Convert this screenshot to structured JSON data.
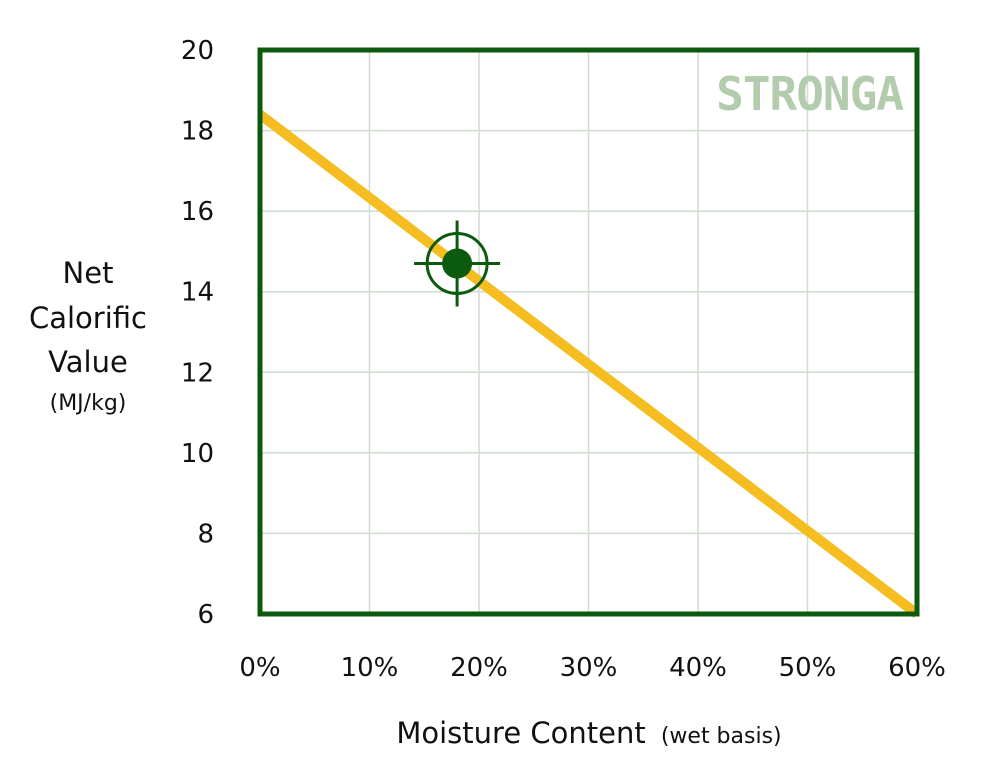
{
  "chart_data": {
    "type": "line",
    "title": "",
    "ylabel": {
      "lines": [
        "Net",
        "Calorific",
        "Value"
      ],
      "unit": "(MJ/kg)"
    },
    "xlabel": {
      "main": "Moisture Content",
      "qualifier": "(wet basis)"
    },
    "xlim": [
      0,
      60
    ],
    "ylim": [
      6,
      20
    ],
    "x_ticks": [
      0,
      10,
      20,
      30,
      40,
      50,
      60
    ],
    "x_tick_labels": [
      "0%",
      "10%",
      "20%",
      "30%",
      "40%",
      "50%",
      "60%"
    ],
    "y_ticks": [
      6,
      8,
      10,
      12,
      14,
      16,
      18,
      20
    ],
    "y_tick_labels": [
      "6",
      "8",
      "10",
      "12",
      "14",
      "16",
      "18",
      "20"
    ],
    "grid": true,
    "series": [
      {
        "x": [
          0,
          60
        ],
        "y": [
          18.4,
          6.0
        ]
      }
    ],
    "highlight_point": {
      "x": 18,
      "y": 14.7
    },
    "brand_text": "STRONGA",
    "colors": {
      "frame": "#0b5a0e",
      "grid": "#cfdccf",
      "line": "#f5bd1f",
      "marker": "#0b5a0e",
      "brand": "#b2ccad"
    }
  }
}
